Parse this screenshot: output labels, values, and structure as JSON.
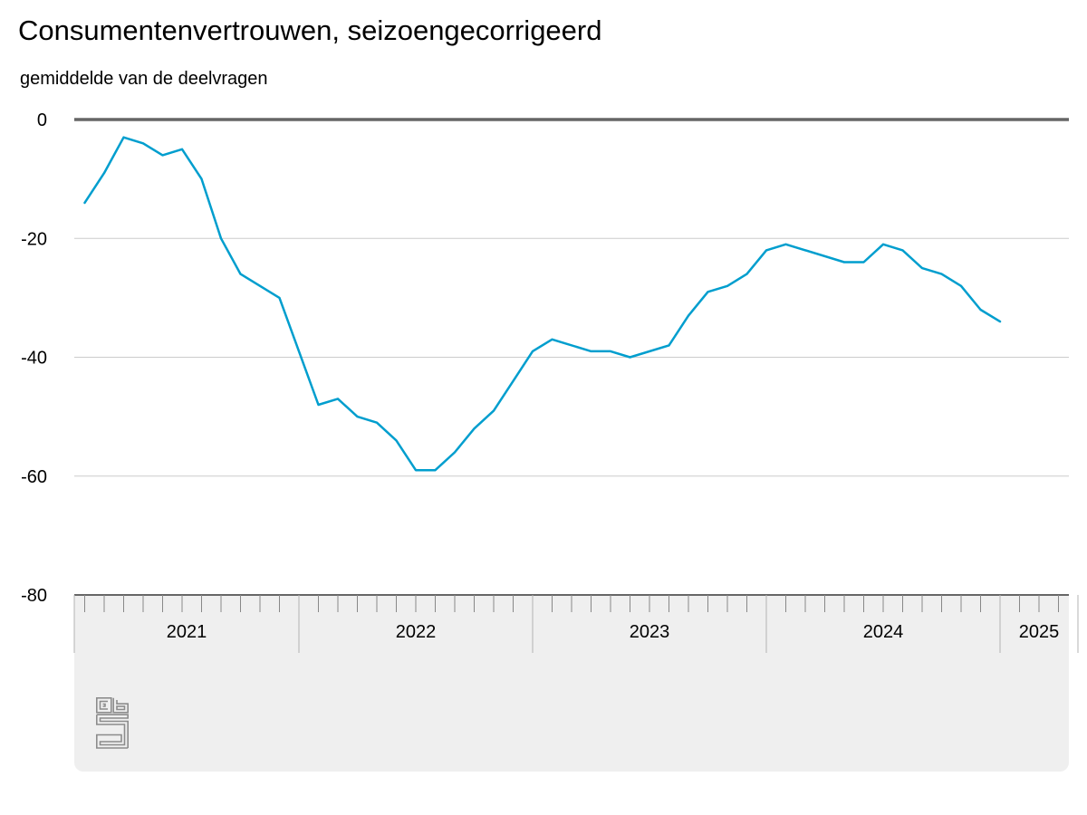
{
  "title": "Consumentenvertrouwen, seizoengecorrigeerd",
  "subtitle": "gemiddelde van de deelvragen",
  "colors": {
    "series": "#009ece",
    "zero_line": "#666666",
    "grid": "#cccccc",
    "panel": "#efefef",
    "axis": "#666666",
    "logo": "#8c8c8c"
  },
  "logo_icon": "cbs-logo-icon",
  "chart_data": {
    "type": "line",
    "title": "Consumentenvertrouwen, seizoengecorrigeerd",
    "subtitle": "gemiddelde van de deelvragen",
    "ylim": [
      -80,
      0
    ],
    "yticks": [
      0,
      -20,
      -40,
      -60,
      -80
    ],
    "grid": true,
    "x_range": [
      "2020-12",
      "2025-04"
    ],
    "year_labels": [
      {
        "label": "2021",
        "start": "2020-12",
        "end": "2021-12"
      },
      {
        "label": "2022",
        "start": "2021-12",
        "end": "2022-12"
      },
      {
        "label": "2023",
        "start": "2022-12",
        "end": "2023-12"
      },
      {
        "label": "2024",
        "start": "2023-12",
        "end": "2024-12"
      },
      {
        "label": "2025",
        "start": "2024-12",
        "end": "2025-04"
      }
    ],
    "series": [
      {
        "points": [
          [
            "2021-01",
            -14
          ],
          [
            "2021-02",
            -9
          ],
          [
            "2021-03",
            -3
          ],
          [
            "2021-04",
            -4
          ],
          [
            "2021-05",
            -6
          ],
          [
            "2021-06",
            -5
          ],
          [
            "2021-07",
            -10
          ],
          [
            "2021-08",
            -20
          ],
          [
            "2021-09",
            -26
          ],
          [
            "2021-11",
            -30
          ],
          [
            "2021-12",
            -39
          ],
          [
            "2022-01",
            -48
          ],
          [
            "2022-02",
            -47
          ],
          [
            "2022-03",
            -50
          ],
          [
            "2022-04",
            -51
          ],
          [
            "2022-05",
            -54
          ],
          [
            "2022-06",
            -59
          ],
          [
            "2022-07",
            -59
          ],
          [
            "2022-08",
            -56
          ],
          [
            "2022-09",
            -52
          ],
          [
            "2022-10",
            -49
          ],
          [
            "2022-11",
            -44
          ],
          [
            "2022-12",
            -39
          ],
          [
            "2023-01",
            -37
          ],
          [
            "2023-03",
            -39
          ],
          [
            "2023-04",
            -39
          ],
          [
            "2023-05",
            -40
          ],
          [
            "2023-07",
            -38
          ],
          [
            "2023-08",
            -33
          ],
          [
            "2023-09",
            -29
          ],
          [
            "2023-10",
            -28
          ],
          [
            "2023-11",
            -26
          ],
          [
            "2023-12",
            -22
          ],
          [
            "2024-01",
            -21
          ],
          [
            "2024-04",
            -24
          ],
          [
            "2024-05",
            -24
          ],
          [
            "2024-06",
            -21
          ],
          [
            "2024-07",
            -22
          ],
          [
            "2024-08",
            -25
          ],
          [
            "2024-09",
            -26
          ],
          [
            "2024-10",
            -28
          ],
          [
            "2024-11",
            -32
          ],
          [
            "2024-12",
            -34
          ]
        ]
      }
    ]
  }
}
